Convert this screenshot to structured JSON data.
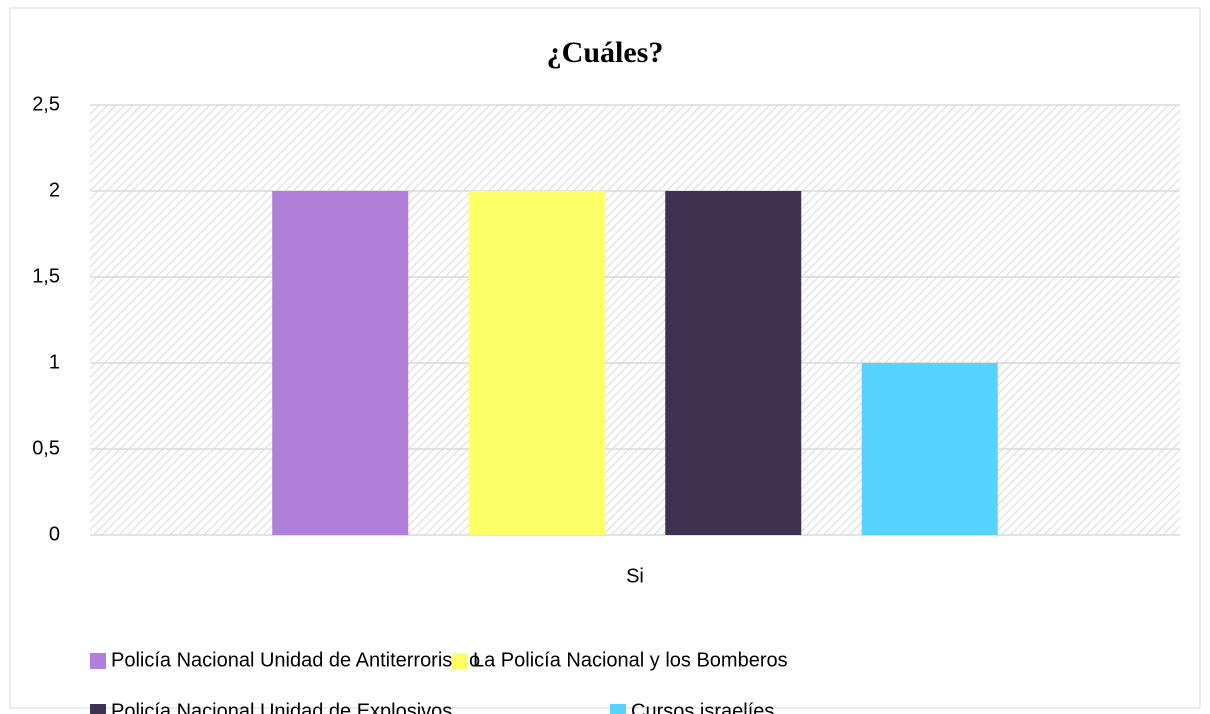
{
  "chart_data": {
    "type": "bar",
    "title": "¿Cuáles?",
    "categories": [
      "Si"
    ],
    "series": [
      {
        "name": "Policía Nacional Unidad de Antiterrorismo",
        "color": "#b07fd8",
        "values": [
          2
        ]
      },
      {
        "name": "La Policía Nacional y los Bomberos",
        "color": "#ffff66",
        "values": [
          2
        ]
      },
      {
        "name": "Policía Nacional Unidad de Explosivos",
        "color": "#3f3151",
        "values": [
          2
        ]
      },
      {
        "name": "Cursos israelíes",
        "color": "#57d3ff",
        "values": [
          1
        ]
      }
    ],
    "ylim": [
      0,
      2.5
    ],
    "yticks": [
      0,
      {
        "value": 0.5,
        "label": "0,5"
      },
      1,
      {
        "value": 1.5,
        "label": "1,5"
      },
      2,
      {
        "value": 2.5,
        "label": "2,5"
      }
    ],
    "grid": true,
    "legend": "bottom"
  }
}
